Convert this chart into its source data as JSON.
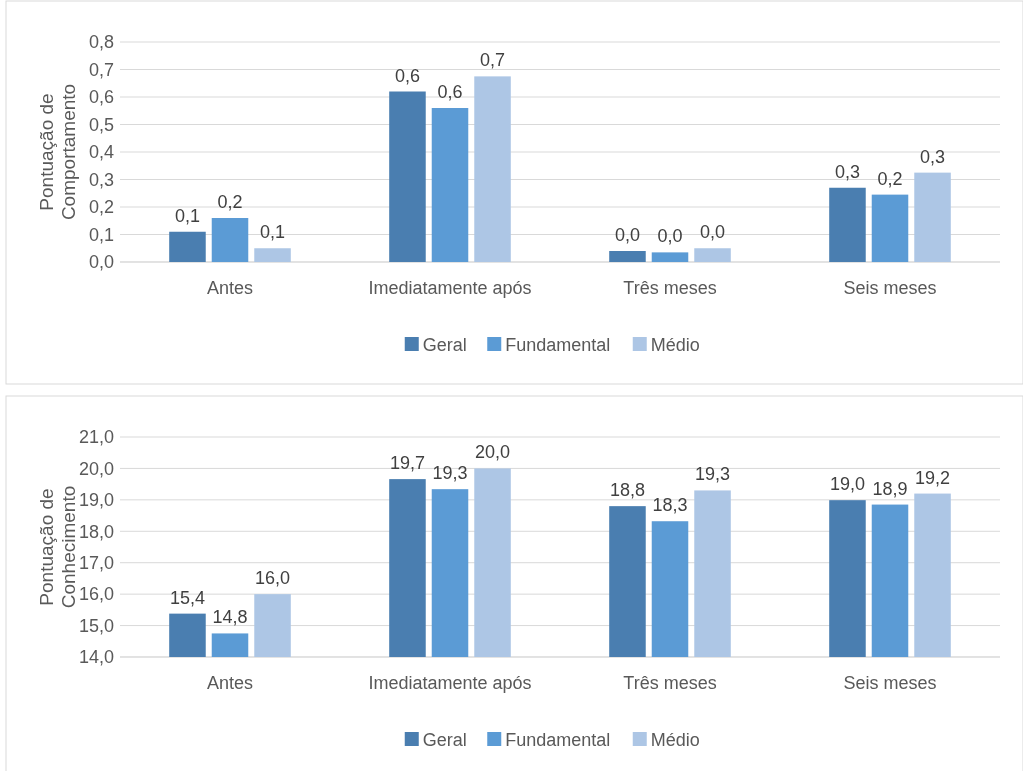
{
  "chart_data": [
    {
      "type": "bar",
      "ylabel": "Pontuação de Comportamento",
      "categories": [
        "Antes",
        "Imediatamente após",
        "Três meses",
        "Seis meses"
      ],
      "series": [
        {
          "name": "Geral",
          "color": "#4a7eb0",
          "values": [
            0.11,
            0.62,
            0.04,
            0.27
          ],
          "value_labels": [
            "0,1",
            "0,6",
            "0,0",
            "0,3"
          ]
        },
        {
          "name": "Fundamental",
          "color": "#5b9bd5",
          "values": [
            0.16,
            0.56,
            0.035,
            0.245
          ],
          "value_labels": [
            "0,2",
            "0,6",
            "0,0",
            "0,2"
          ]
        },
        {
          "name": "Médio",
          "color": "#adc6e5",
          "values": [
            0.05,
            0.675,
            0.05,
            0.325
          ],
          "value_labels": [
            "0,1",
            "0,7",
            "0,0",
            "0,3"
          ]
        }
      ],
      "ylim": [
        0,
        0.8
      ],
      "yticks": [
        {
          "value": 0,
          "label": "0,0"
        },
        {
          "value": 0.1,
          "label": "0,1"
        },
        {
          "value": 0.2,
          "label": "0,2"
        },
        {
          "value": 0.3,
          "label": "0,3"
        },
        {
          "value": 0.4,
          "label": "0,4"
        },
        {
          "value": 0.5,
          "label": "0,5"
        },
        {
          "value": 0.6,
          "label": "0,6"
        },
        {
          "value": 0.7,
          "label": "0,7"
        },
        {
          "value": 0.8,
          "label": "0,8"
        }
      ],
      "grid": "y",
      "legend": "bottom"
    },
    {
      "type": "bar",
      "ylabel": "Pontuação de Conhecimento",
      "categories": [
        "Antes",
        "Imediatamente após",
        "Três meses",
        "Seis meses"
      ],
      "series": [
        {
          "name": "Geral",
          "color": "#4a7eb0",
          "values": [
            15.38,
            19.66,
            18.8,
            18.99
          ],
          "value_labels": [
            "15,4",
            "19,7",
            "18,8",
            "19,0"
          ]
        },
        {
          "name": "Fundamental",
          "color": "#5b9bd5",
          "values": [
            14.75,
            19.34,
            18.32,
            18.85
          ],
          "value_labels": [
            "14,8",
            "19,3",
            "18,3",
            "18,9"
          ]
        },
        {
          "name": "Médio",
          "color": "#adc6e5",
          "values": [
            16.0,
            20.0,
            19.3,
            19.2
          ],
          "value_labels": [
            "16,0",
            "20,0",
            "19,3",
            "19,2"
          ]
        }
      ],
      "ylim": [
        14,
        21
      ],
      "yticks": [
        {
          "value": 14,
          "label": "14,0"
        },
        {
          "value": 15,
          "label": "15,0"
        },
        {
          "value": 16,
          "label": "16,0"
        },
        {
          "value": 17,
          "label": "17,0"
        },
        {
          "value": 18,
          "label": "18,0"
        },
        {
          "value": 19,
          "label": "19,0"
        },
        {
          "value": 20,
          "label": "20,0"
        },
        {
          "value": 21,
          "label": "21,0"
        }
      ],
      "grid": "y",
      "legend": "bottom"
    }
  ]
}
